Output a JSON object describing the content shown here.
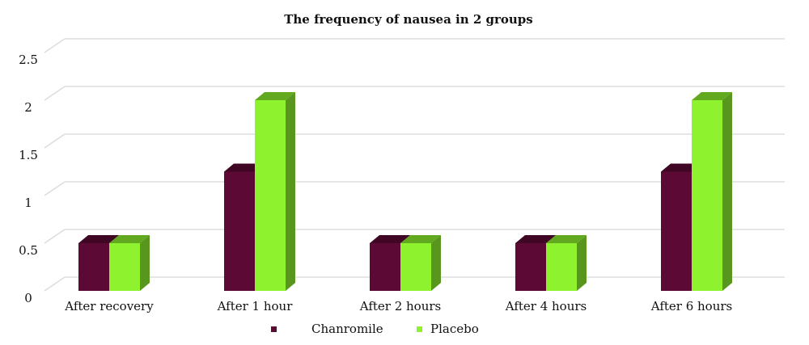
{
  "chart_data": {
    "type": "bar3d",
    "title": "The frequency of nausea in 2 groups",
    "categories": [
      "After recovery",
      "After 1 hour",
      "After 2 hours",
      "After 4 hours",
      "After 6 hours"
    ],
    "series": [
      {
        "name": "Chanromile",
        "color": "#5c0a35",
        "values": [
          0.5,
          1.25,
          0.5,
          0.5,
          1.25
        ]
      },
      {
        "name": "Placebo",
        "color": "#8ef22e",
        "values": [
          0.5,
          2,
          0.5,
          0.5,
          2
        ]
      }
    ],
    "ylim": [
      0,
      2.5
    ],
    "yticks": [
      0,
      0.5,
      1,
      1.5,
      2,
      2.5
    ],
    "grid": true
  }
}
